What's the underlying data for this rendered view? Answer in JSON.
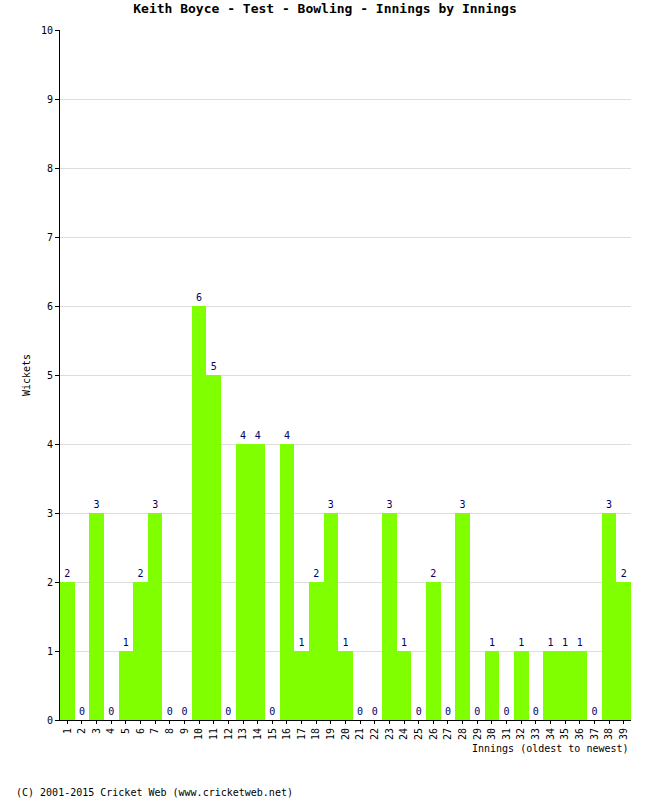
{
  "chart_data": {
    "type": "bar",
    "title": "Keith Boyce - Test - Bowling - Innings by Innings",
    "x_label": "Innings (oldest to newest)",
    "y_label": "Wickets",
    "annotations": [
      "(C) 2001-2015 Cricket Web (www.cricketweb.net)"
    ],
    "categories": [
      "1",
      "2",
      "3",
      "4",
      "5",
      "6",
      "7",
      "8",
      "9",
      "10",
      "11",
      "12",
      "13",
      "14",
      "15",
      "16",
      "17",
      "18",
      "19",
      "20",
      "21",
      "22",
      "23",
      "24",
      "25",
      "26",
      "27",
      "28",
      "29",
      "30",
      "31",
      "32",
      "33",
      "34",
      "35",
      "36",
      "37",
      "38",
      "39"
    ],
    "values": [
      2,
      0,
      3,
      0,
      1,
      2,
      3,
      0,
      0,
      6,
      5,
      0,
      4,
      4,
      0,
      4,
      1,
      2,
      3,
      1,
      0,
      0,
      3,
      1,
      0,
      2,
      0,
      3,
      0,
      1,
      0,
      1,
      0,
      1,
      1,
      1,
      0,
      3,
      2
    ],
    "color": "#80ff00",
    "ylim": [
      0,
      10
    ],
    "yticks": [
      0,
      1,
      2,
      3,
      4,
      5,
      6,
      7,
      8,
      9,
      10
    ],
    "grid": true,
    "data_labels": true
  }
}
